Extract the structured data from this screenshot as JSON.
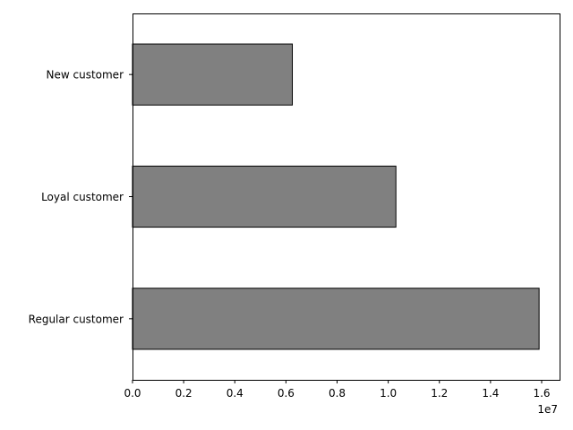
{
  "chart_data": {
    "type": "bar",
    "orientation": "horizontal",
    "categories": [
      "New customer",
      "Loyal customer",
      "Regular customer"
    ],
    "values": [
      6250000,
      10300000,
      15900000
    ],
    "xlim": [
      0,
      16700000
    ],
    "x_ticks": [
      0,
      2000000,
      4000000,
      6000000,
      8000000,
      10000000,
      12000000,
      14000000,
      16000000
    ],
    "x_tick_labels": [
      "0.0",
      "0.2",
      "0.4",
      "0.6",
      "0.8",
      "1.0",
      "1.2",
      "1.4",
      "1.6"
    ],
    "x_offset_label": "1e7",
    "title": "",
    "xlabel": "",
    "ylabel": "",
    "grid": false,
    "legend": "none",
    "bar_color": "#808080",
    "bar_edge_color": "#000000"
  }
}
